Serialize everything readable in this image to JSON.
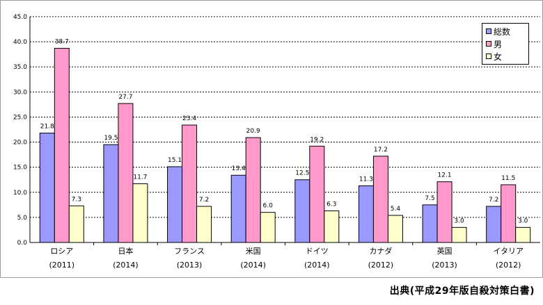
{
  "chart_data": {
    "type": "bar",
    "categories": [
      {
        "name": "ロシア",
        "year": "(2011)"
      },
      {
        "name": "日本",
        "year": "(2014)"
      },
      {
        "name": "フランス",
        "year": "(2013)"
      },
      {
        "name": "米国",
        "year": "(2014)"
      },
      {
        "name": "ドイツ",
        "year": "(2014)"
      },
      {
        "name": "カナダ",
        "year": "(2012)"
      },
      {
        "name": "英国",
        "year": "(2013)"
      },
      {
        "name": "イタリア",
        "year": "(2012)"
      }
    ],
    "series": [
      {
        "name": "総数",
        "color": "#9999ff",
        "values": [
          21.8,
          19.5,
          15.1,
          13.4,
          12.5,
          11.3,
          7.5,
          7.2
        ],
        "labels": [
          "21.8",
          "19.5",
          "15.1",
          "13.4",
          "12.5",
          "11.3",
          "7.5",
          "7.2"
        ]
      },
      {
        "name": "男",
        "color": "#ff99cc",
        "values": [
          38.7,
          27.7,
          23.4,
          20.9,
          19.2,
          17.2,
          12.1,
          11.5
        ],
        "labels": [
          "38.7",
          "27.7",
          "23.4",
          "20.9",
          "19.2",
          "17.2",
          "12.1",
          "11.5"
        ]
      },
      {
        "name": "女",
        "color": "#ffffcc",
        "values": [
          7.3,
          11.7,
          7.2,
          6.0,
          6.3,
          5.4,
          3.0,
          3.0
        ],
        "labels": [
          "7.3",
          "11.7",
          "7.2",
          "6.0",
          "6.3",
          "5.4",
          "3.0",
          "3.0"
        ]
      }
    ],
    "yticks": [
      "0.0",
      "5.0",
      "10.0",
      "15.0",
      "20.0",
      "25.0",
      "30.0",
      "35.0",
      "40.0",
      "45.0"
    ],
    "ylim": [
      0,
      45
    ],
    "grid": "horizontal dashed",
    "legend_position": "top-right"
  },
  "source_note": "出典(平成29年版自殺対策白書)"
}
